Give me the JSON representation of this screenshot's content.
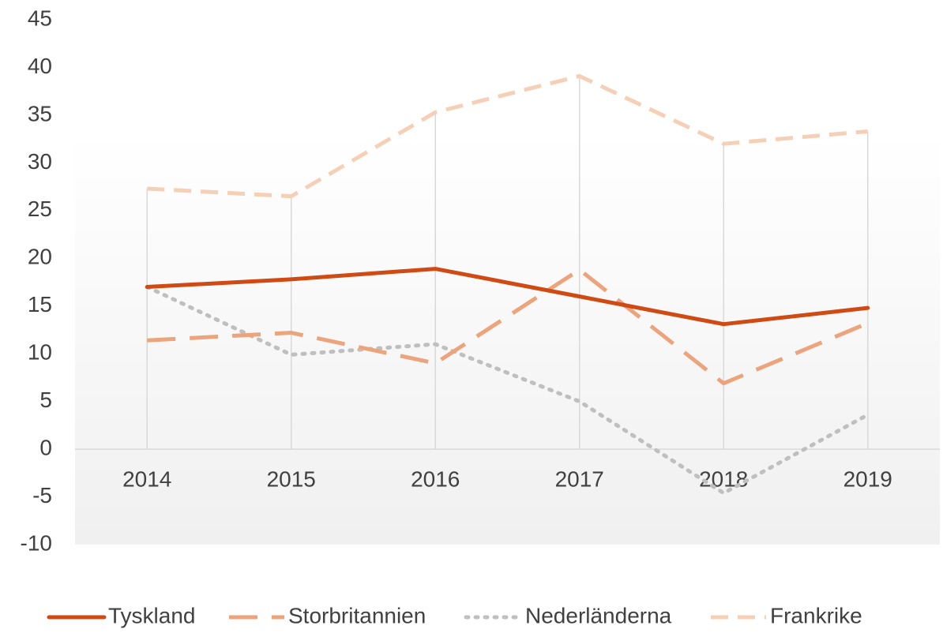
{
  "chart_data": {
    "type": "line",
    "categories": [
      "2014",
      "2015",
      "2016",
      "2017",
      "2018",
      "2019"
    ],
    "series": [
      {
        "name": "Tyskland",
        "color": "#d04a14",
        "line_style": "solid",
        "values": [
          17,
          17.8,
          18.9,
          16.0,
          13.1,
          14.8
        ]
      },
      {
        "name": "Storbritannien",
        "color": "#eba47c",
        "line_style": "long-dash",
        "values": [
          11.4,
          12.2,
          9.0,
          18.8,
          6.9,
          13.2
        ]
      },
      {
        "name": "Nederländerna",
        "color": "#bfbfbf",
        "line_style": "dot",
        "values": [
          17,
          9.9,
          11.0,
          5.0,
          -4.6,
          3.6
        ]
      },
      {
        "name": "Frankrike",
        "color": "#f6d0b6",
        "line_style": "dash",
        "values": [
          27.3,
          26.5,
          35.3,
          39.1,
          32.0,
          33.3
        ]
      }
    ],
    "ylim": [
      -10,
      45
    ],
    "yticks": [
      -10,
      -5,
      0,
      5,
      10,
      15,
      20,
      25,
      30,
      35,
      40,
      45
    ],
    "legend": "bottom"
  }
}
